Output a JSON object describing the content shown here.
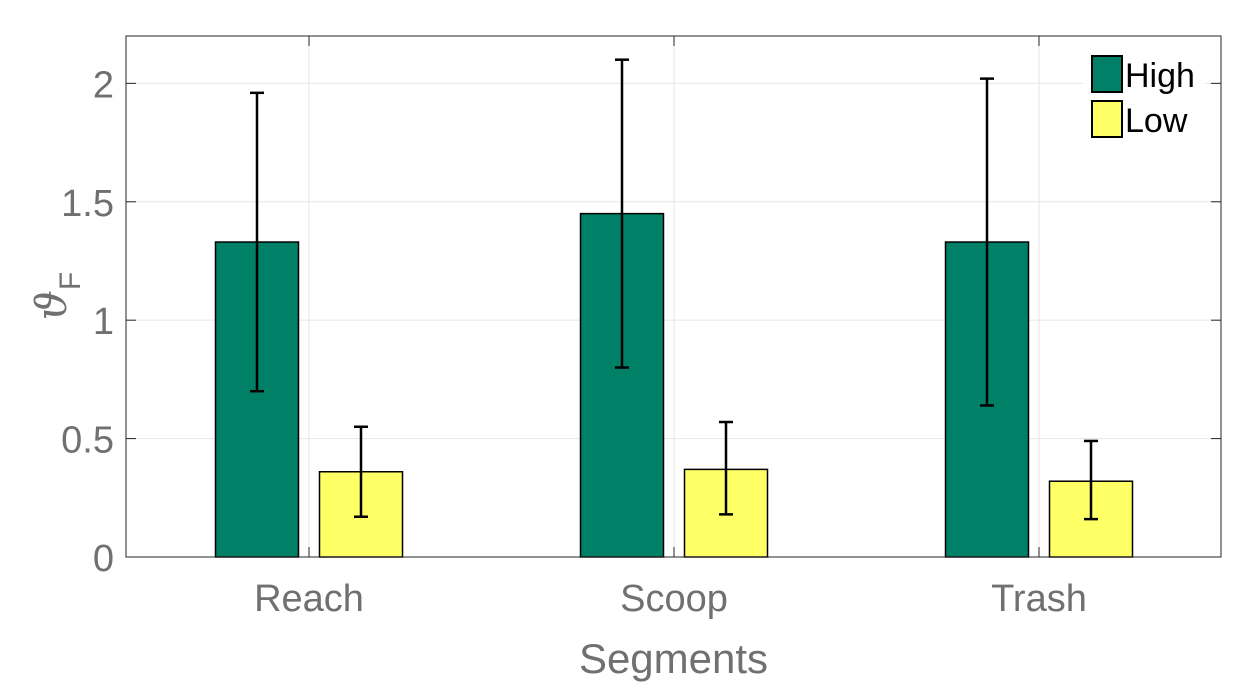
{
  "chart_data": {
    "type": "bar",
    "title": "",
    "xlabel": "Segments",
    "ylabel": "ϑ",
    "ylabel_subscript": "F",
    "categories": [
      "Reach",
      "Scoop",
      "Trash"
    ],
    "ylim": [
      0,
      2.2
    ],
    "yticks": [
      0,
      0.5,
      1,
      1.5,
      2
    ],
    "ytick_labels": [
      "0",
      "0.5",
      "1",
      "1.5",
      "2"
    ],
    "grid": true,
    "legend_position": "top-right",
    "series": [
      {
        "name": "High",
        "color": "#008066",
        "values": [
          1.33,
          1.45,
          1.33
        ],
        "error_low": [
          0.7,
          0.8,
          0.64
        ],
        "error_high": [
          1.96,
          2.1,
          2.02
        ]
      },
      {
        "name": "Low",
        "color": "#FFFF66",
        "values": [
          0.36,
          0.37,
          0.32
        ],
        "error_low": [
          0.17,
          0.18,
          0.16
        ],
        "error_high": [
          0.55,
          0.57,
          0.49
        ]
      }
    ]
  }
}
